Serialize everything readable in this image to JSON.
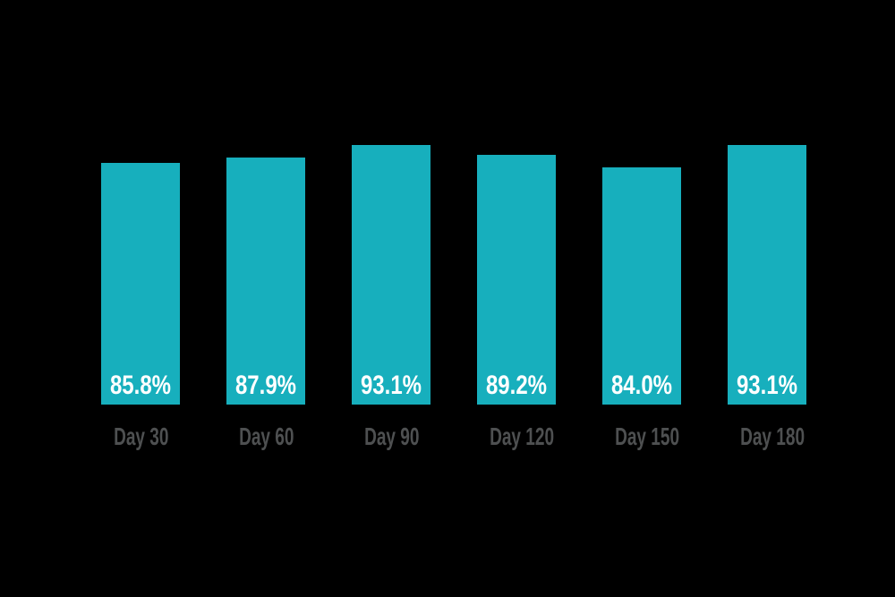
{
  "chart_data": {
    "type": "bar",
    "title": "",
    "xlabel": "",
    "ylabel": "",
    "categories": [
      "Day 30",
      "Day 60",
      "Day 90",
      "Day 120",
      "Day 150",
      "Day 180"
    ],
    "values": [
      85.8,
      87.9,
      93.1,
      89.2,
      84.0,
      93.1
    ],
    "value_labels": [
      "85.8%",
      "87.9%",
      "93.1%",
      "89.2%",
      "84.0%",
      "93.1%"
    ],
    "value_labels_position": "inside-bottom",
    "grid": false,
    "legend": false,
    "axes_visible": false,
    "colors": {
      "bar": "#17AFBD",
      "value_label": "#FFFFFF",
      "category_label": "#4E5051",
      "background": "#000000"
    }
  }
}
